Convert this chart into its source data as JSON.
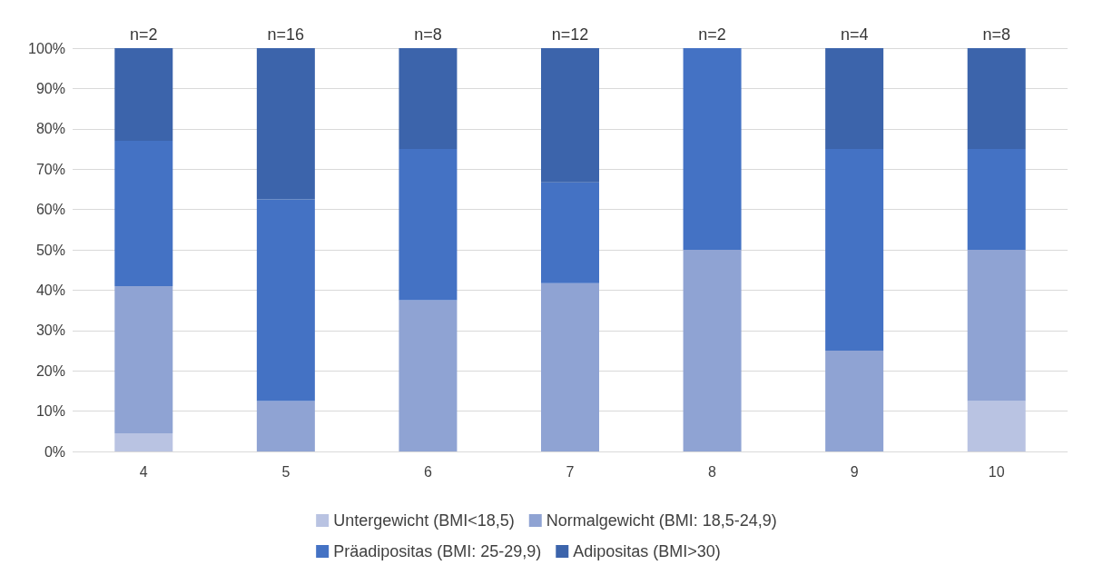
{
  "chart_data": {
    "type": "bar",
    "stacked": true,
    "categories": [
      "4",
      "5",
      "6",
      "7",
      "8",
      "9",
      "10"
    ],
    "series": [
      {
        "name": "Untergewicht (BMI<18,5)",
        "color": "#b9c3e2",
        "values": [
          4.5,
          0,
          0,
          0,
          0,
          0,
          12.5
        ]
      },
      {
        "name": "Normalgewicht (BMI: 18,5-24,9)",
        "color": "#8fa3d3",
        "values": [
          36.5,
          12.5,
          37.5,
          41.7,
          50,
          25,
          37.5
        ]
      },
      {
        "name": "Präadipositas (BMI: 25-29,9)",
        "color": "#4472c4",
        "values": [
          36,
          50,
          37.5,
          25,
          50,
          50,
          25
        ]
      },
      {
        "name": "Adipositas (BMI>30)",
        "color": "#3c64ab",
        "values": [
          23,
          37.5,
          25,
          33.3,
          0,
          25,
          25
        ]
      }
    ],
    "ylim": [
      0,
      100
    ],
    "yticks": [
      {
        "value": 0,
        "label": "0%"
      },
      {
        "value": 10,
        "label": "10%"
      },
      {
        "value": 20,
        "label": "20%"
      },
      {
        "value": 30,
        "label": "30%"
      },
      {
        "value": 40,
        "label": "40%"
      },
      {
        "value": 50,
        "label": "50%"
      },
      {
        "value": 60,
        "label": "60%"
      },
      {
        "value": 70,
        "label": "70%"
      },
      {
        "value": 80,
        "label": "80%"
      },
      {
        "value": 90,
        "label": "90%"
      },
      {
        "value": 100,
        "label": "100%"
      }
    ],
    "annotations": [
      {
        "text": "n=2",
        "x": "4",
        "y": 100
      },
      {
        "text": "n=16",
        "x": "5",
        "y": 100
      },
      {
        "text": "n=8",
        "x": "6",
        "y": 100
      },
      {
        "text": "n=12",
        "x": "7",
        "y": 100
      },
      {
        "text": "n=2",
        "x": "8",
        "y": 100
      },
      {
        "text": "n=4",
        "x": "9",
        "y": 100
      },
      {
        "text": "n=8",
        "x": "10",
        "y": 100
      }
    ],
    "grid": "y",
    "legend": "bottom"
  }
}
